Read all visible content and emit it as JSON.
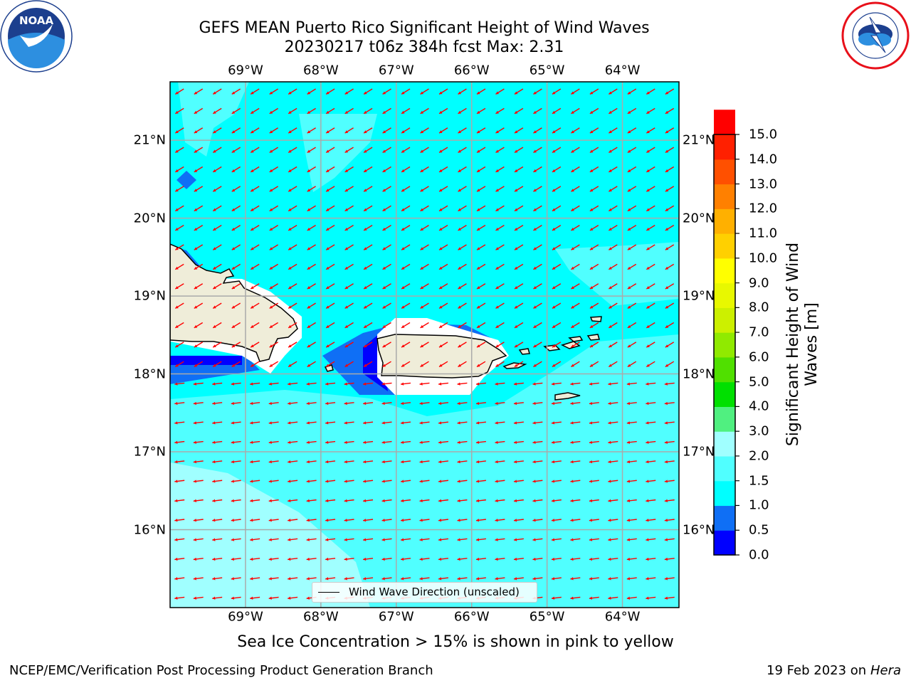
{
  "header": {
    "title_line1": "GEFS MEAN Puerto Rico Significant Height of Wind Waves",
    "title_line2": "20230217 t06z 384h fcst   Max: 2.31"
  },
  "logos": {
    "noara_icon": "noaa-logo",
    "nws_icon": "nws-logo",
    "noaa_text": "NOAA",
    "noaa_ring": "NATIONAL OCEANIC AND ATMOSPHERIC ADMINISTRATION · U.S. DEPARTMENT OF COMMERCE",
    "nws_ring": "NATIONAL WEATHER SERVICE"
  },
  "map": {
    "lon_ticks": [
      "69°W",
      "68°W",
      "67°W",
      "66°W",
      "65°W",
      "64°W"
    ],
    "lat_ticks": [
      "21°N",
      "20°N",
      "19°N",
      "18°N",
      "17°N",
      "16°N"
    ],
    "lon_values": [
      -69,
      -68,
      -67,
      -66,
      -65,
      -64
    ],
    "lat_values": [
      21,
      20,
      19,
      18,
      17,
      16
    ],
    "lon_range": [
      -70,
      -63.25
    ],
    "lat_range": [
      15,
      21.75
    ],
    "grid": true,
    "legend_label": "Wind Wave Direction (unscaled)",
    "legend_position": "lower-center",
    "arrow_color": "#ff0000",
    "land_color": "#efedd9",
    "sea_base_color": "#00ffff"
  },
  "colorbar": {
    "label": "Significant Height of Wind Waves [m]",
    "label_line1": "Significant Height of Wind",
    "label_line2": "Waves [m]",
    "ticks": [
      "15.0",
      "14.0",
      "13.0",
      "12.0",
      "11.0",
      "10.0",
      "9.0",
      "8.0",
      "7.0",
      "6.0",
      "5.0",
      "4.0",
      "3.0",
      "2.0",
      "1.5",
      "1.0",
      "0.5",
      "0.0"
    ],
    "colors_bottom_to_top": [
      "#0000ff",
      "#0f6ff5",
      "#00ffff",
      "#50ffff",
      "#a0ffff",
      "#50f080",
      "#00e000",
      "#50e000",
      "#90ea00",
      "#ccf000",
      "#e8f800",
      "#ffff00",
      "#ffd000",
      "#ffb000",
      "#ff8000",
      "#ff5000",
      "#ff2000",
      "#ff0000"
    ]
  },
  "caption": "Sea Ice Concentration > 15% is shown in pink to yellow",
  "footer": {
    "left": "NCEP/EMC/Verification Post Processing Product Generation Branch",
    "right_date": "19 Feb 2023 on",
    "right_host": "Hera"
  }
}
